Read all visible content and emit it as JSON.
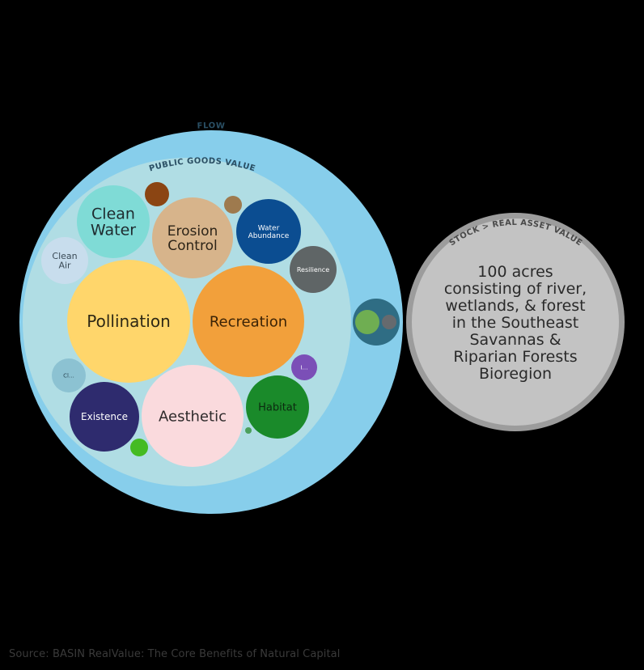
{
  "flow_label": "FLOW",
  "public_goods_label": "PUBLIC GOODS VALUE",
  "stock_label": "STOCK > REAL ASSET VALUE",
  "stock_description": [
    "100 acres",
    "consisting of river,",
    "wetlands, & forest",
    "in the Southeast",
    "Savannas &",
    "Riparian Forests",
    "Bioregion"
  ],
  "source": "Source: BASIN RealValue: The Core Benefits of Natural Capital",
  "colors": {
    "background": "#000000",
    "flow": "#87ceeb",
    "public_goods": "#b0dde4",
    "stock": "#c3c3c3"
  },
  "bubbles": [
    {
      "id": "clean-water",
      "label": [
        "Clean",
        "Water"
      ],
      "color": "#7fdbd6"
    },
    {
      "id": "erosion-control",
      "label": [
        "Erosion",
        "Control"
      ],
      "color": "#d7b48b"
    },
    {
      "id": "water-abundance",
      "label": [
        "Water",
        "Abundance"
      ],
      "color": "#0b4d91"
    },
    {
      "id": "resilience",
      "label": [
        "Resilience"
      ],
      "color": "#5f6566"
    },
    {
      "id": "clean-air",
      "label": [
        "Clean",
        "Air"
      ],
      "color": "#c8dded"
    },
    {
      "id": "pollination",
      "label": [
        "Pollination"
      ],
      "color": "#ffd66b"
    },
    {
      "id": "recreation",
      "label": [
        "Recreation"
      ],
      "color": "#f2a03b"
    },
    {
      "id": "climate",
      "label": [
        "Cl…"
      ],
      "color": "#8cc2d2"
    },
    {
      "id": "existence",
      "label": [
        "Existence"
      ],
      "color": "#2e2b6e"
    },
    {
      "id": "aesthetic",
      "label": [
        "Aesthetic"
      ],
      "color": "#fadadd"
    },
    {
      "id": "habitat",
      "label": [
        "Habitat"
      ],
      "color": "#1a8a2a"
    },
    {
      "id": "i-small",
      "label": [
        "I…"
      ],
      "color": "#7b4fb7"
    },
    {
      "id": "brown-unlabeled",
      "label": [],
      "color": "#8b4513"
    },
    {
      "id": "tan-unlabeled",
      "label": [],
      "color": "#9e7a4e"
    },
    {
      "id": "lime-unlabeled",
      "label": [],
      "color": "#44bb22"
    },
    {
      "id": "tiny-green-unlabeled",
      "label": [],
      "color": "#4ca05c"
    }
  ],
  "side_group": {
    "outer_color": "#2f6d84",
    "items": [
      {
        "id": "side-green",
        "color": "#6fae52"
      },
      {
        "id": "side-grey",
        "color": "#666a6e"
      }
    ]
  }
}
